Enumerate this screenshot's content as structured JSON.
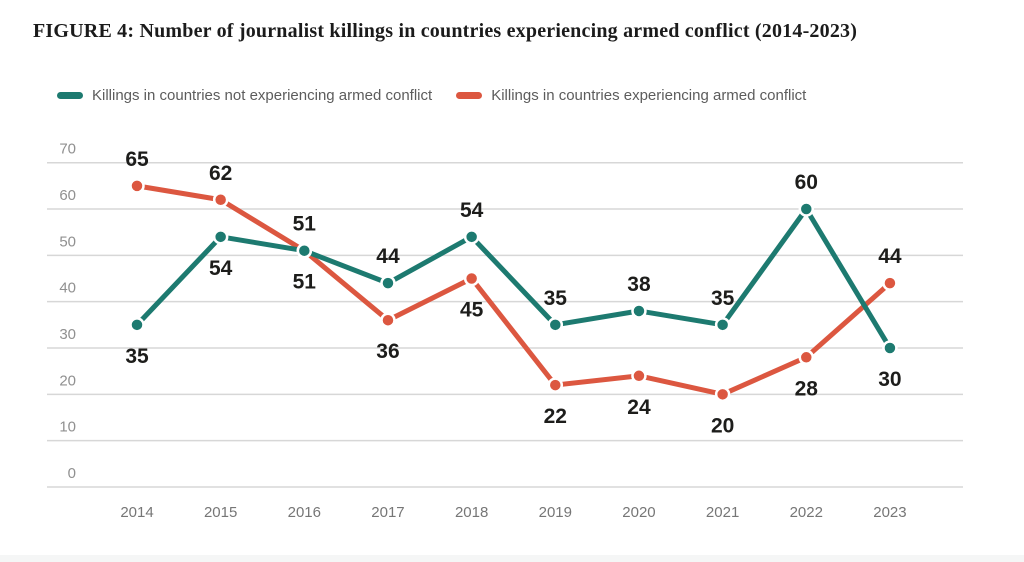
{
  "figure": {
    "title": "FIGURE 4: Number of journalist killings in countries experiencing armed conflict (2014-2023)"
  },
  "colors": {
    "teal": "#1d7a70",
    "orange": "#dc5740",
    "grid": "#d7d7d7",
    "data_label": "#1d1d1b",
    "y_tick": "#909090",
    "x_tick": "#767676"
  },
  "chart_data": {
    "type": "line",
    "title": "FIGURE 4: Number of journalist killings in countries experiencing armed conflict (2014-2023)",
    "x": [
      2014,
      2015,
      2016,
      2017,
      2018,
      2019,
      2020,
      2021,
      2022,
      2023
    ],
    "series": [
      {
        "name": "Killings in countries not experiencing armed conflict",
        "color_key": "teal",
        "values": [
          35,
          54,
          51,
          44,
          54,
          35,
          38,
          35,
          60,
          30
        ],
        "label_positions": [
          "below",
          "below",
          "below",
          "above",
          "above",
          "above",
          "above",
          "above",
          "above",
          "below"
        ]
      },
      {
        "name": "Killings in countries experiencing armed conflict",
        "color_key": "orange",
        "values": [
          65,
          62,
          51,
          36,
          45,
          22,
          24,
          20,
          28,
          44
        ],
        "label_positions": [
          "above",
          "above",
          "above",
          "below",
          "below",
          "below",
          "below",
          "below",
          "below",
          "above"
        ]
      }
    ],
    "xlabel": "",
    "ylabel": "",
    "ylim": [
      0,
      70
    ],
    "yticks": [
      0,
      10,
      20,
      30,
      40,
      50,
      60,
      70
    ],
    "grid": true,
    "legend_position": "top-left"
  }
}
